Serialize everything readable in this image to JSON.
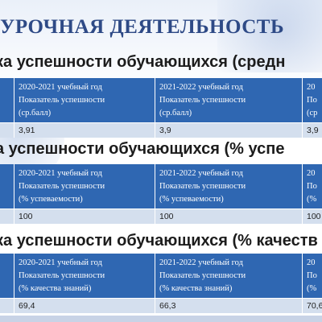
{
  "title": "УРОЧНАЯ ДЕЯТЕЛЬНОСТЬ",
  "sections": [
    {
      "heading": "ка успешности обучающихся (средн",
      "columns": [
        {
          "year": "2020-2021 учебный год",
          "line2": "Показатель успешности",
          "line3": "(ср.балл)",
          "value": "3,91"
        },
        {
          "year": "2021-2022 учебный год",
          "line2": "Показатель успешности",
          "line3": "(ср.балл)",
          "value": "3,9"
        },
        {
          "year": "20",
          "line2": "По",
          "line3": "(ср",
          "value": "3,9"
        }
      ]
    },
    {
      "heading": "а успешности обучающихся (% успе",
      "columns": [
        {
          "year": "2020-2021 учебный год",
          "line2": "Показатель успешности",
          "line3": "(% успеваемости)",
          "value": "100"
        },
        {
          "year": "2021-2022 учебный год",
          "line2": "Показатель успешности",
          "line3": "(% успеваемости)",
          "value": "100"
        },
        {
          "year": "20",
          "line2": "По",
          "line3": "(%",
          "value": "100"
        }
      ]
    },
    {
      "heading": "ка успешности обучающихся (% качеств",
      "columns": [
        {
          "year": "2020-2021 учебный год",
          "line2": "Показатель успешности",
          "line3": "(% качества знаний)",
          "value": "69,4"
        },
        {
          "year": "2021-2022 учебный год",
          "line2": "Показатель успешности",
          "line3": "(% качества знаний)",
          "value": "66,3"
        },
        {
          "year": "20",
          "line2": "По",
          "line3": "(%",
          "value": "70,6"
        }
      ]
    }
  ]
}
